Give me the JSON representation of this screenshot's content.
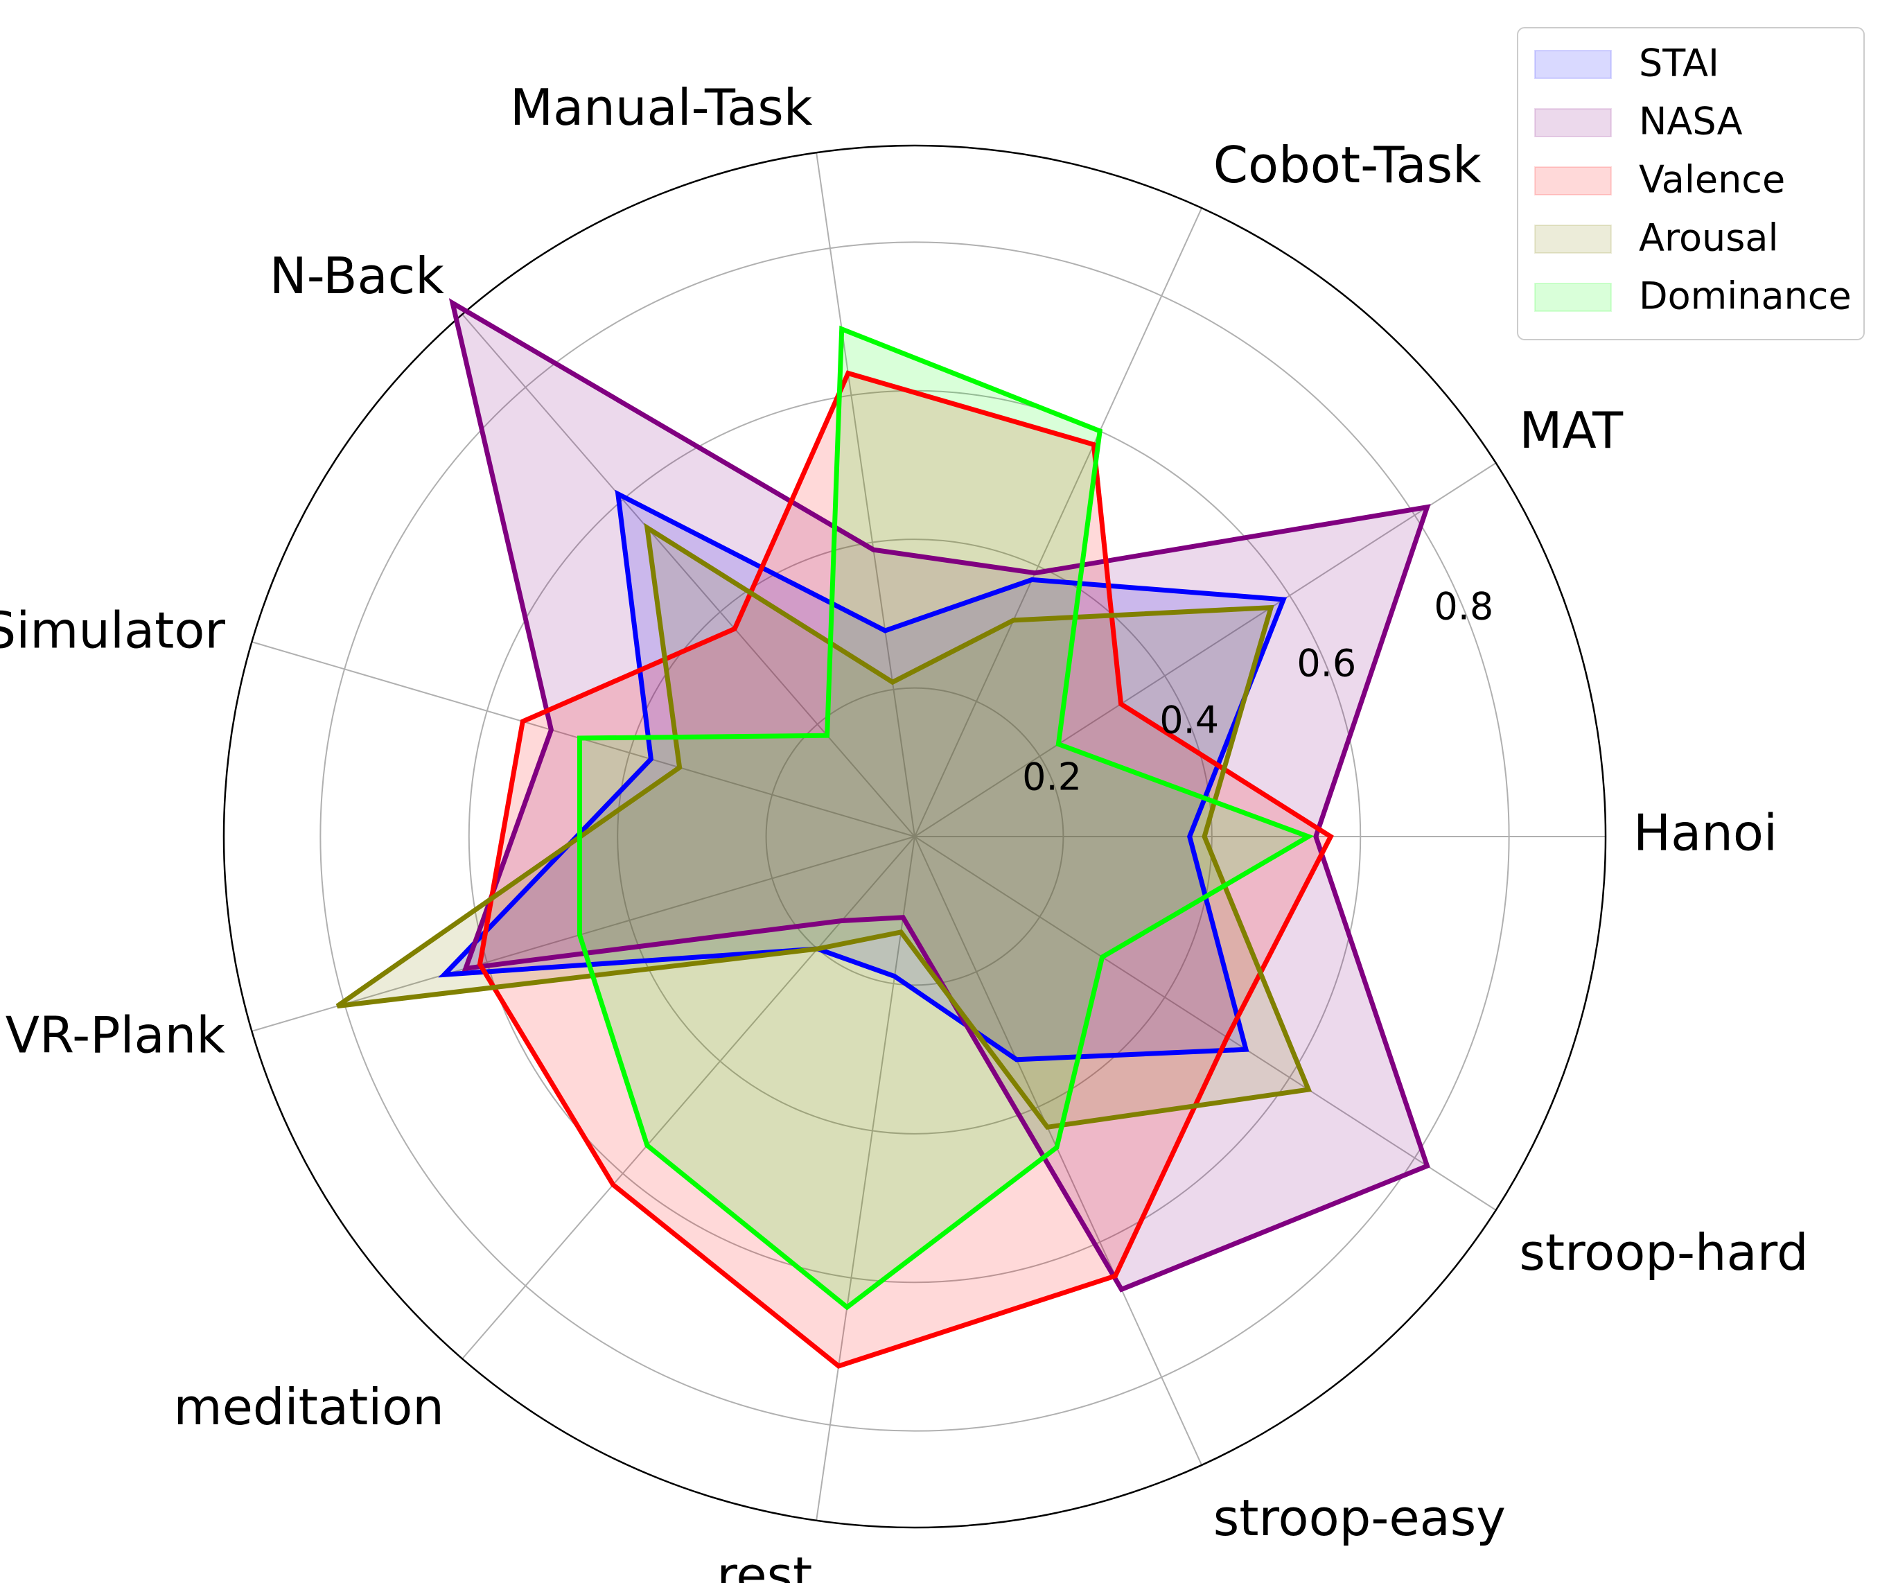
{
  "chart_data": {
    "type": "radar",
    "categories": [
      "Hanoi",
      "MAT",
      "Cobot-Task",
      "Manual-Task",
      "N-Back",
      "VR-Job Simulator",
      "VR-Plank",
      "meditation",
      "rest",
      "stroop-easy",
      "stroop-hard"
    ],
    "radial_ticks": [
      "0.2",
      "0.4",
      "0.6",
      "0.8"
    ],
    "rlim": [
      0,
      0.93
    ],
    "grid": true,
    "legend_position": "top-right",
    "series": [
      {
        "name": "STAI",
        "color": "#0000ff",
        "fill": "#ccccff",
        "values": [
          0.37,
          0.59,
          0.38,
          0.28,
          0.61,
          0.37,
          0.66,
          0.2,
          0.19,
          0.33,
          0.53
        ]
      },
      {
        "name": "NASA",
        "color": "#800080",
        "fill": "#e6cce6",
        "values": [
          0.54,
          0.82,
          0.39,
          0.39,
          0.95,
          0.51,
          0.63,
          0.15,
          0.11,
          0.67,
          0.82
        ]
      },
      {
        "name": "Valence",
        "color": "#ff0000",
        "fill": "#ffcccc",
        "values": [
          0.56,
          0.33,
          0.58,
          0.63,
          0.37,
          0.55,
          0.61,
          0.62,
          0.72,
          0.65,
          0.5
        ]
      },
      {
        "name": "Arousal",
        "color": "#808000",
        "fill": "#e6e6cc",
        "values": [
          0.39,
          0.57,
          0.32,
          0.21,
          0.55,
          0.33,
          0.81,
          0.2,
          0.13,
          0.43,
          0.63
        ]
      },
      {
        "name": "Dominance",
        "color": "#00ff00",
        "fill": "#ccffcc",
        "values": [
          0.53,
          0.23,
          0.6,
          0.69,
          0.18,
          0.47,
          0.47,
          0.55,
          0.64,
          0.46,
          0.3
        ]
      }
    ]
  }
}
